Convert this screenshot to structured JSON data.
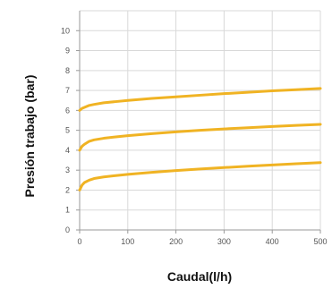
{
  "chart_data": {
    "type": "line",
    "xlabel": "Caudal(l/h)",
    "ylabel": "Presión trabajo (bar)",
    "xlim": [
      0,
      500
    ],
    "ylim": [
      0,
      11
    ],
    "x_ticks": [
      0,
      100,
      200,
      300,
      400,
      500
    ],
    "y_ticks": [
      0,
      1,
      2,
      3,
      4,
      5,
      6,
      7,
      8,
      9,
      10
    ],
    "grid": true,
    "line_color": "#f0b323",
    "series": [
      {
        "x": [
          0,
          5,
          10,
          20,
          30,
          50,
          75,
          100,
          150,
          200,
          250,
          300,
          350,
          400,
          450,
          500
        ],
        "y": [
          6.0,
          6.1,
          6.15,
          6.25,
          6.3,
          6.38,
          6.44,
          6.5,
          6.6,
          6.68,
          6.76,
          6.84,
          6.91,
          6.98,
          7.04,
          7.1
        ]
      },
      {
        "x": [
          0,
          5,
          10,
          20,
          30,
          50,
          75,
          100,
          150,
          200,
          250,
          300,
          350,
          400,
          450,
          500
        ],
        "y": [
          4.0,
          4.2,
          4.3,
          4.45,
          4.52,
          4.6,
          4.67,
          4.73,
          4.83,
          4.92,
          5.0,
          5.07,
          5.13,
          5.19,
          5.25,
          5.3
        ]
      },
      {
        "x": [
          0,
          5,
          10,
          20,
          30,
          50,
          75,
          100,
          150,
          200,
          250,
          300,
          350,
          400,
          450,
          500
        ],
        "y": [
          2.0,
          2.25,
          2.38,
          2.5,
          2.58,
          2.66,
          2.73,
          2.79,
          2.89,
          2.98,
          3.06,
          3.13,
          3.2,
          3.26,
          3.32,
          3.38
        ]
      }
    ]
  }
}
